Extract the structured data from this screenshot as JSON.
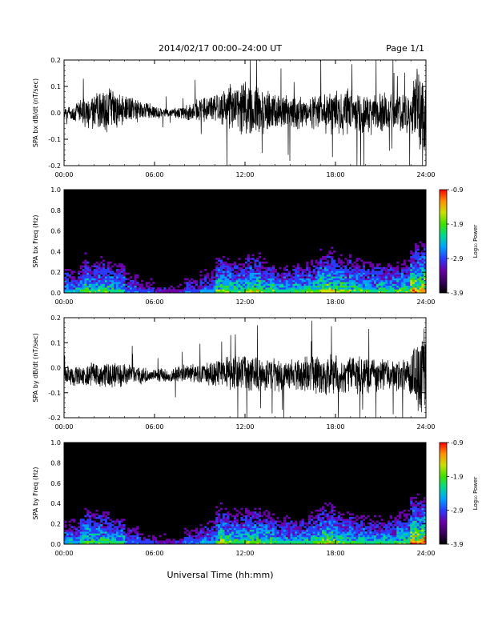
{
  "header": {
    "title": "2014/02/17  00:00–24:00 UT",
    "page": "Page 1/1"
  },
  "footer": {
    "xlabel": "Universal Time (hh:mm)"
  },
  "colors": {
    "trace": "#000000",
    "spec_background": "#000000",
    "colormap": [
      "#000000",
      "#3a0060",
      "#6a00a8",
      "#2a3cff",
      "#00a0ff",
      "#00d890",
      "#40e000",
      "#c8e000",
      "#ff9000",
      "#ff0000"
    ]
  },
  "chart_data": [
    {
      "type": "line",
      "title": "",
      "ylabel": "SPA bx dB/dt (nT/sec)",
      "xlabel": "",
      "xlim": [
        0,
        24
      ],
      "ylim": [
        -0.2,
        0.2
      ],
      "yticks": [
        -0.2,
        -0.1,
        0.0,
        0.1,
        0.2
      ],
      "ytick_labels": [
        "-0.2",
        "-0.1",
        "0.0",
        "0.1",
        "0.2"
      ],
      "xticks": [
        0,
        6,
        12,
        18,
        24
      ],
      "xtick_labels": [
        "00:00",
        "06:00",
        "12:00",
        "18:00",
        "24:00"
      ],
      "series": [
        {
          "x": [
            0,
            1,
            2,
            3,
            4,
            5,
            6,
            7,
            8,
            9,
            10,
            11,
            12,
            13,
            14,
            15,
            16,
            17,
            18,
            19,
            20,
            21,
            22,
            23,
            23.5,
            24
          ],
          "values": [
            0.0,
            0.0,
            0.01,
            0.01,
            0.01,
            0.01,
            0.0,
            0.0,
            0.0,
            0.01,
            0.02,
            0.02,
            0.02,
            0.01,
            0.01,
            0.0,
            0.0,
            0.0,
            0.0,
            0.0,
            0.0,
            0.0,
            0.0,
            0.0,
            0.0,
            0.0
          ],
          "envelope": [
            0.02,
            0.05,
            0.08,
            0.09,
            0.06,
            0.05,
            0.03,
            0.02,
            0.03,
            0.05,
            0.07,
            0.09,
            0.11,
            0.1,
            0.08,
            0.07,
            0.07,
            0.08,
            0.09,
            0.1,
            0.09,
            0.08,
            0.08,
            0.09,
            0.2,
            0.2
          ]
        }
      ]
    },
    {
      "type": "heatmap",
      "title": "",
      "ylabel": "SPA bx Freq (Hz)",
      "xlim": [
        0,
        24
      ],
      "ylim": [
        0,
        1.0
      ],
      "yticks": [
        0.0,
        0.2,
        0.4,
        0.6,
        0.8,
        1.0
      ],
      "ytick_labels": [
        "0.0",
        "0.2",
        "0.4",
        "0.6",
        "0.8",
        "1.0"
      ],
      "xticks": [
        0,
        6,
        12,
        18,
        24
      ],
      "xtick_labels": [
        "00:00",
        "06:00",
        "12:00",
        "18:00",
        "24:00"
      ],
      "colorbar": {
        "label": "Log₁₀ Power",
        "range": [
          -3.9,
          -0.9
        ],
        "ticks": [
          -3.9,
          -2.9,
          -1.9,
          -0.9
        ],
        "tick_labels": [
          "-3.9",
          "-2.9",
          "-1.9",
          "-0.9"
        ]
      },
      "hour_activity": [
        0.55,
        0.6,
        0.7,
        0.65,
        0.45,
        0.35,
        0.3,
        0.3,
        0.4,
        0.5,
        0.75,
        0.7,
        0.8,
        0.7,
        0.6,
        0.6,
        0.7,
        0.85,
        0.75,
        0.7,
        0.65,
        0.65,
        0.7,
        0.95
      ],
      "features": [
        {
          "t": 1.5,
          "level": 0.8
        },
        {
          "t": 2.2,
          "level": 0.7
        },
        {
          "t": 10.5,
          "level": 0.8
        },
        {
          "t": 15.5,
          "level": 0.7
        },
        {
          "t": 17.0,
          "level": 0.8
        },
        {
          "t": 23.9,
          "level": 1.0
        }
      ]
    },
    {
      "type": "line",
      "title": "",
      "ylabel": "SPA by dB/dt (nT/sec)",
      "xlabel": "",
      "xlim": [
        0,
        24
      ],
      "ylim": [
        -0.2,
        0.2
      ],
      "yticks": [
        -0.2,
        -0.1,
        0.0,
        0.1,
        0.2
      ],
      "ytick_labels": [
        "-0.2",
        "-0.1",
        "0.0",
        "0.1",
        "0.2"
      ],
      "xticks": [
        0,
        6,
        12,
        18,
        24
      ],
      "xtick_labels": [
        "00:00",
        "06:00",
        "12:00",
        "18:00",
        "24:00"
      ],
      "series": [
        {
          "x": [
            0,
            1,
            2,
            3,
            4,
            5,
            6,
            7,
            8,
            9,
            10,
            11,
            12,
            13,
            14,
            15,
            16,
            17,
            18,
            19,
            20,
            21,
            22,
            23,
            23.5,
            24
          ],
          "values": [
            -0.03,
            -0.03,
            -0.03,
            -0.03,
            -0.03,
            -0.03,
            -0.03,
            -0.03,
            -0.02,
            -0.02,
            -0.02,
            -0.02,
            -0.02,
            -0.02,
            -0.03,
            -0.03,
            -0.03,
            -0.03,
            -0.03,
            -0.03,
            -0.03,
            -0.03,
            -0.03,
            -0.03,
            -0.03,
            0.0
          ],
          "envelope": [
            0.04,
            0.05,
            0.06,
            0.06,
            0.05,
            0.04,
            0.03,
            0.03,
            0.04,
            0.05,
            0.06,
            0.07,
            0.08,
            0.08,
            0.07,
            0.07,
            0.08,
            0.09,
            0.09,
            0.09,
            0.08,
            0.07,
            0.07,
            0.09,
            0.2,
            0.2
          ]
        }
      ]
    },
    {
      "type": "heatmap",
      "title": "",
      "ylabel": "SPA by Freq (Hz)",
      "xlim": [
        0,
        24
      ],
      "ylim": [
        0,
        1.0
      ],
      "yticks": [
        0.0,
        0.2,
        0.4,
        0.6,
        0.8,
        1.0
      ],
      "ytick_labels": [
        "0.0",
        "0.2",
        "0.4",
        "0.6",
        "0.8",
        "1.0"
      ],
      "xticks": [
        0,
        6,
        12,
        18,
        24
      ],
      "xtick_labels": [
        "00:00",
        "06:00",
        "12:00",
        "18:00",
        "24:00"
      ],
      "colorbar": {
        "label": "Log₁₀ Power",
        "range": [
          -3.9,
          -0.9
        ],
        "ticks": [
          -3.9,
          -2.9,
          -1.9,
          -0.9
        ],
        "tick_labels": [
          "-3.9",
          "-2.9",
          "-1.9",
          "-0.9"
        ]
      },
      "hour_activity": [
        0.55,
        0.65,
        0.7,
        0.6,
        0.45,
        0.35,
        0.3,
        0.3,
        0.4,
        0.5,
        0.75,
        0.7,
        0.75,
        0.7,
        0.6,
        0.6,
        0.65,
        0.8,
        0.7,
        0.65,
        0.6,
        0.6,
        0.7,
        0.95
      ],
      "features": [
        {
          "t": 1.5,
          "level": 0.8
        },
        {
          "t": 2.2,
          "level": 0.7
        },
        {
          "t": 10.5,
          "level": 0.8
        },
        {
          "t": 15.5,
          "level": 0.6
        },
        {
          "t": 17.0,
          "level": 0.8
        },
        {
          "t": 23.9,
          "level": 1.0
        }
      ]
    }
  ]
}
